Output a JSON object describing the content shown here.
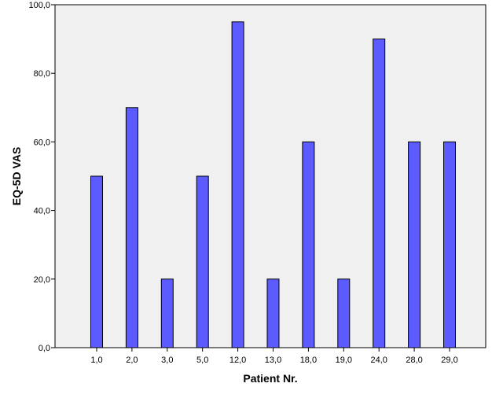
{
  "chart_data": {
    "type": "bar",
    "categories": [
      "1,0",
      "2,0",
      "3,0",
      "5,0",
      "12,0",
      "13,0",
      "18,0",
      "19,0",
      "24,0",
      "28,0",
      "29,0"
    ],
    "values": [
      50,
      70,
      20,
      50,
      95,
      20,
      60,
      20,
      90,
      60,
      60
    ],
    "xlabel": "Patient Nr.",
    "ylabel": "EQ-5D VAS",
    "ylim": [
      0,
      100
    ],
    "yticks": [
      {
        "value": 0,
        "label": "0,0"
      },
      {
        "value": 20,
        "label": "20,0"
      },
      {
        "value": 40,
        "label": "40,0"
      },
      {
        "value": 60,
        "label": "60,0"
      },
      {
        "value": 80,
        "label": "80,0"
      },
      {
        "value": 100,
        "label": "100,0"
      }
    ],
    "grid": false,
    "colors": {
      "bar_fill": "#5b5bff",
      "bar_stroke": "#000000",
      "plot_background": "#f0f0f0"
    }
  }
}
